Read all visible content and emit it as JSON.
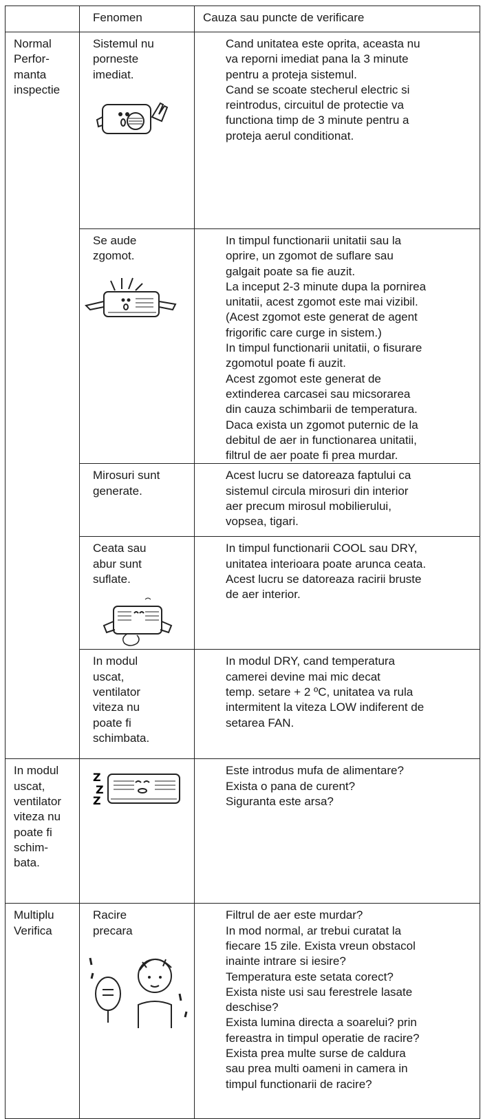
{
  "table": {
    "header": [
      "Fenomen",
      "Cauza sau puncte de verificare"
    ],
    "sections": [
      {
        "label": [
          "Normal",
          "Perfor-",
          "manta",
          "inspectie"
        ],
        "rows": [
          {
            "phenomenon": [
              "Sistemul nu",
              "porneste",
              "imediat."
            ],
            "cause": [
              "Cand unitatea este oprita, aceasta nu",
              "va reporni imediat pana la 3 minute",
              "pentru a proteja sistemul.",
              "Cand se scoate stecherul electric si",
              "reintrodus, circuitul de protectie va",
              "functiona timp de 3 minute pentru a",
              "proteja aerul conditionat."
            ]
          },
          {
            "phenomenon": [
              "Se aude",
              "zgomot."
            ],
            "cause": [
              "In timpul functionarii unitatii sau la",
              "oprire, un zgomot de suflare sau",
              "galgait poate sa fie auzit.",
              "La inceput 2-3 minute dupa la pornirea",
              "unitatii, acest zgomot este mai vizibil.",
              "(Acest zgomot este generat de agent",
              "frigorific care curge in sistem.)",
              "In timpul functionarii unitatii, o fisurare",
              "zgomotul poate fi auzit.",
              "Acest zgomot este generat de",
              "extinderea carcasei sau micsorarea",
              "din cauza schimbarii de temperatura.",
              "Daca exista un zgomot puternic de la",
              "debitul de aer in functionarea unitatii,",
              "filtrul de aer poate fi prea murdar."
            ]
          },
          {
            "phenomenon": [
              "Mirosuri sunt",
              "generate."
            ],
            "cause": [
              "Acest lucru se datoreaza faptului ca",
              "sistemul circula mirosuri din interior",
              "aer precum mirosul mobilierului,",
              "vopsea, tigari."
            ]
          },
          {
            "phenomenon": [
              "Ceata sau",
              "abur sunt",
              "suflate."
            ],
            "cause": [
              "In timpul functionarii COOL sau DRY,",
              "unitatea interioara poate arunca ceata.",
              "Acest lucru se datoreaza racirii bruste",
              "de aer interior."
            ]
          },
          {
            "phenomenon": [
              "In modul",
              "uscat,",
              "ventilator",
              "viteza nu",
              "poate fi",
              "schimbata."
            ],
            "cause": [
              "In modul DRY, cand temperatura",
              "camerei devine mai mic decat",
              "temp. setare + 2 ºC, unitatea va rula",
              "intermitent la viteza LOW indiferent de",
              "setarea FAN."
            ]
          }
        ]
      },
      {
        "label": [
          "In modul",
          "uscat,",
          "ventilator",
          "viteza nu",
          "poate fi",
          "schim-",
          "bata."
        ],
        "rows": [
          {
            "cause": [
              "Este introdus mufa de alimentare?",
              "Exista o pana de curent?",
              "Siguranta este arsa?"
            ]
          }
        ]
      },
      {
        "label": [
          "Multiplu",
          "Verifica"
        ],
        "rows": [
          {
            "phenomenon": [
              "Racire",
              "precara"
            ],
            "cause": [
              "Filtrul de aer este murdar?",
              "In mod normal, ar trebui curatat la",
              "fiecare 15 zile. Exista vreun obstacol",
              "inainte intrare si iesire?",
              "Temperatura este setata corect?",
              "Exista niste usi sau ferestrele lasate",
              "deschise?",
              "Exista lumina directa a soarelui? prin",
              "fereastra in timpul operatie de racire?",
              "Exista prea multe surse de caldura",
              "sau prea multi oameni in camera in",
              "timpul functionarii de racire?"
            ]
          }
        ]
      }
    ]
  }
}
